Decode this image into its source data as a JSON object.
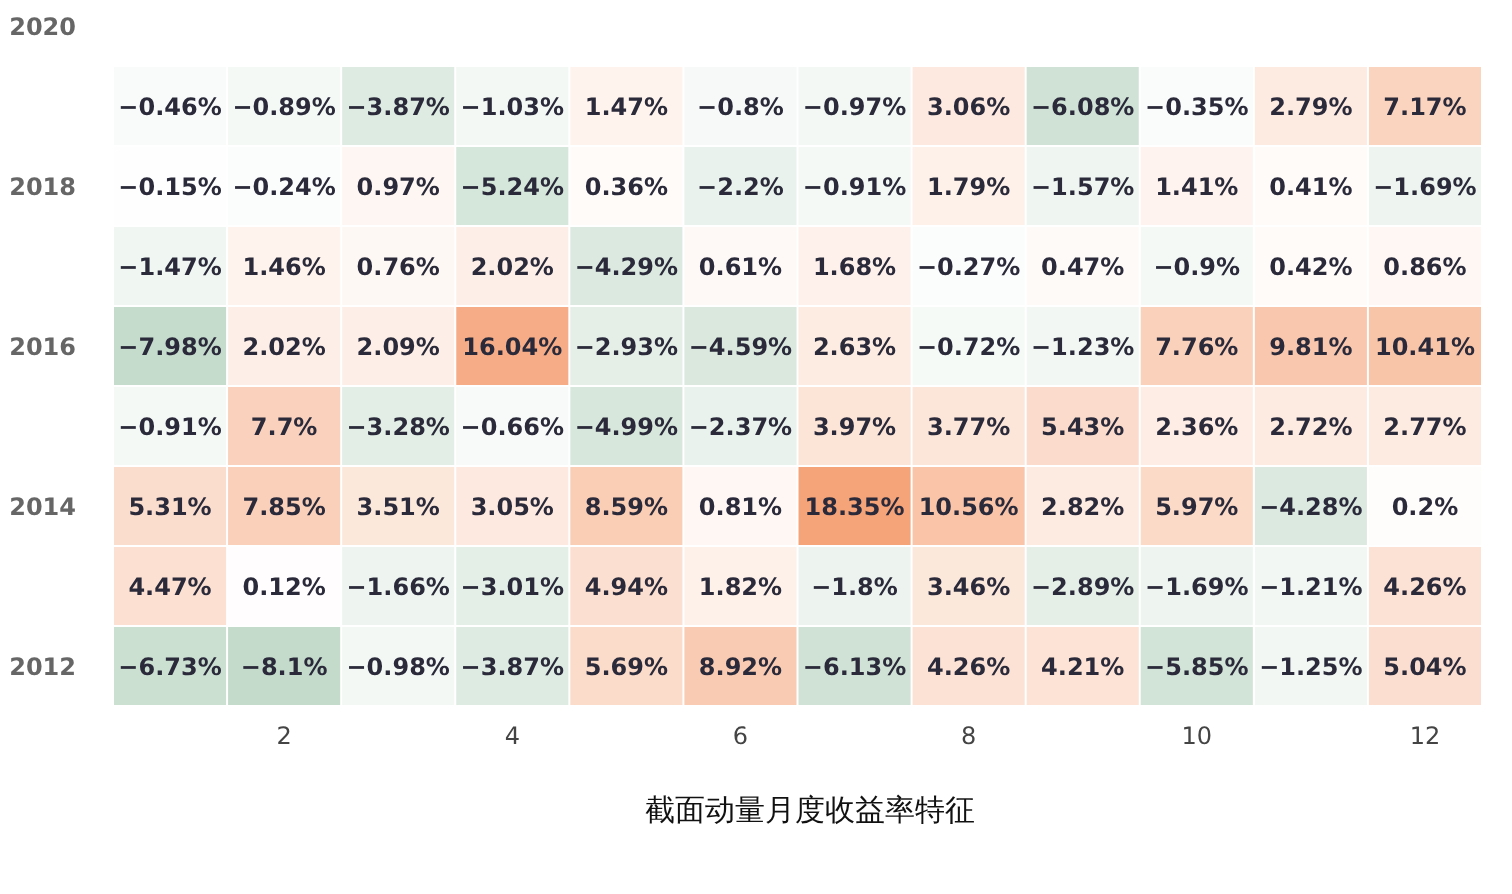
{
  "chart_data": {
    "type": "heatmap",
    "title": "截面动量月度收益率特征",
    "categories": [
      null,
      "2",
      null,
      "4",
      null,
      "6",
      null,
      "8",
      null,
      "10",
      null,
      "12"
    ],
    "y_categories": [
      "2020",
      null,
      "2018",
      null,
      "2016",
      null,
      "2014",
      null,
      "2012"
    ],
    "cells": [
      [
        null,
        null,
        null,
        null,
        null,
        null,
        null,
        null,
        null,
        null,
        null,
        null
      ],
      [
        -0.46,
        -0.89,
        -3.87,
        -1.03,
        1.47,
        -0.8,
        -0.97,
        3.06,
        -6.08,
        -0.35,
        2.79,
        7.17
      ],
      [
        -0.15,
        -0.24,
        0.97,
        -5.24,
        0.36,
        -2.2,
        -0.91,
        1.79,
        -1.57,
        1.41,
        0.41,
        -1.69
      ],
      [
        -1.47,
        1.46,
        0.76,
        2.02,
        -4.29,
        0.61,
        1.68,
        -0.27,
        0.47,
        -0.9,
        0.42,
        0.86
      ],
      [
        -7.98,
        2.02,
        2.09,
        16.04,
        -2.93,
        -4.59,
        2.63,
        -0.72,
        -1.23,
        7.76,
        9.81,
        10.41
      ],
      [
        -0.91,
        7.7,
        -3.28,
        -0.66,
        -4.99,
        -2.37,
        3.97,
        3.77,
        5.43,
        2.36,
        2.72,
        2.77
      ],
      [
        5.31,
        7.85,
        3.51,
        3.05,
        8.59,
        0.81,
        18.35,
        10.56,
        2.82,
        5.97,
        -4.28,
        0.2
      ],
      [
        4.47,
        0.12,
        -1.66,
        -3.01,
        4.94,
        1.82,
        -1.8,
        3.46,
        -2.89,
        -1.69,
        -1.21,
        4.26
      ],
      [
        -6.73,
        -8.1,
        -0.98,
        -3.87,
        5.69,
        8.92,
        -6.13,
        4.26,
        4.21,
        -5.85,
        -1.25,
        5.04
      ]
    ],
    "cell_labels": [
      [
        null,
        null,
        null,
        null,
        null,
        null,
        null,
        null,
        null,
        null,
        null,
        null
      ],
      [
        "−0.46%",
        "−0.89%",
        "−3.87%",
        "−1.03%",
        "1.47%",
        "−0.8%",
        "−0.97%",
        "3.06%",
        "−6.08%",
        "−0.35%",
        "2.79%",
        "7.17%"
      ],
      [
        "−0.15%",
        "−0.24%",
        "0.97%",
        "−5.24%",
        "0.36%",
        "−2.2%",
        "−0.91%",
        "1.79%",
        "−1.57%",
        "1.41%",
        "0.41%",
        "−1.69%"
      ],
      [
        "−1.47%",
        "1.46%",
        "0.76%",
        "2.02%",
        "−4.29%",
        "0.61%",
        "1.68%",
        "−0.27%",
        "0.47%",
        "−0.9%",
        "0.42%",
        "0.86%"
      ],
      [
        "−7.98%",
        "2.02%",
        "2.09%",
        "16.04%",
        "−2.93%",
        "−4.59%",
        "2.63%",
        "−0.72%",
        "−1.23%",
        "7.76%",
        "9.81%",
        "10.41%"
      ],
      [
        "−0.91%",
        "7.7%",
        "−3.28%",
        "−0.66%",
        "−4.99%",
        "−2.37%",
        "3.97%",
        "3.77%",
        "5.43%",
        "2.36%",
        "2.72%",
        "2.77%"
      ],
      [
        "5.31%",
        "7.85%",
        "3.51%",
        "3.05%",
        "8.59%",
        "0.81%",
        "18.35%",
        "10.56%",
        "2.82%",
        "5.97%",
        "−4.28%",
        "0.2%"
      ],
      [
        "4.47%",
        "0.12%",
        "−1.66%",
        "−3.01%",
        "4.94%",
        "1.82%",
        "−1.8%",
        "3.46%",
        "−2.89%",
        "−1.69%",
        "−1.21%",
        "4.26%"
      ],
      [
        "−6.73%",
        "−8.1%",
        "−0.98%",
        "−3.87%",
        "5.69%",
        "8.92%",
        "−6.13%",
        "4.26%",
        "4.21%",
        "−5.85%",
        "−1.25%",
        "5.04%"
      ]
    ]
  }
}
